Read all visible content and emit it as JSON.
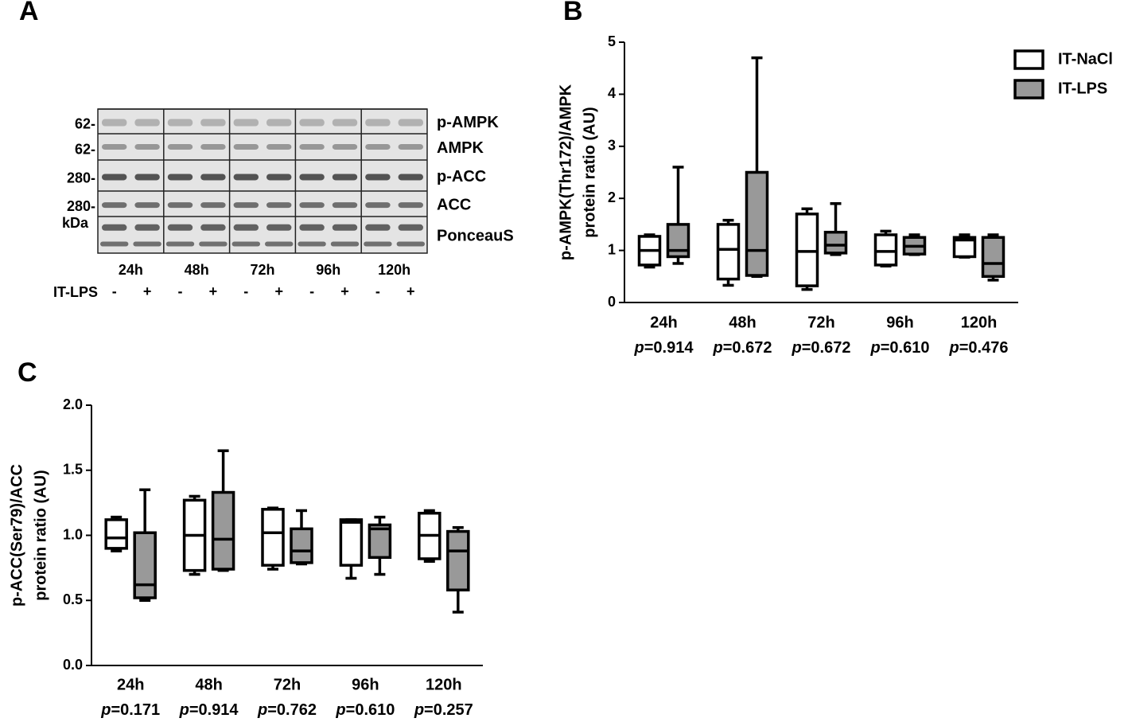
{
  "blot": {
    "panel": "A",
    "rows": [
      {
        "label": "p-AMPK",
        "marker": "62-"
      },
      {
        "label": "AMPK",
        "marker": "62-"
      },
      {
        "label": "p-ACC",
        "marker": "280-"
      },
      {
        "label": "ACC",
        "marker": "280-"
      },
      {
        "label": "PonceauS",
        "marker": "kDa"
      }
    ],
    "timepoints": [
      "24h",
      "48h",
      "72h",
      "96h",
      "120h"
    ],
    "treatment_label": "IT-LPS",
    "treatment_signs": [
      "-",
      "+",
      "-",
      "+",
      "-",
      "+",
      "-",
      "+",
      "-",
      "+"
    ]
  },
  "chart_data": [
    {
      "type": "box",
      "panel": "B",
      "ylabel": [
        "p-AMPK(Thr172)/AMPK",
        "protein ratio (AU)"
      ],
      "categories": [
        "24h",
        "48h",
        "72h",
        "96h",
        "120h"
      ],
      "p_values": [
        "p=0.914",
        "p=0.672",
        "p=0.672",
        "p=0.610",
        "p=0.476"
      ],
      "ylim": [
        0,
        5
      ],
      "yticks": [
        0,
        1,
        2,
        3,
        4,
        5
      ],
      "legend": "upper right",
      "series": [
        {
          "name": "IT-NaCl",
          "color": "#ffffff",
          "values": [
            {
              "min": 0.68,
              "q1": 0.72,
              "median": 1.0,
              "q3": 1.27,
              "max": 1.3
            },
            {
              "min": 0.33,
              "q1": 0.45,
              "median": 1.02,
              "q3": 1.5,
              "max": 1.58
            },
            {
              "min": 0.25,
              "q1": 0.32,
              "median": 0.98,
              "q3": 1.7,
              "max": 1.8
            },
            {
              "min": 0.7,
              "q1": 0.72,
              "median": 0.98,
              "q3": 1.3,
              "max": 1.37
            },
            {
              "min": 0.87,
              "q1": 0.88,
              "median": 1.2,
              "q3": 1.25,
              "max": 1.3
            }
          ]
        },
        {
          "name": "IT-LPS",
          "color": "#999999",
          "values": [
            {
              "min": 0.75,
              "q1": 0.88,
              "median": 1.0,
              "q3": 1.5,
              "max": 2.6
            },
            {
              "min": 0.5,
              "q1": 0.52,
              "median": 1.0,
              "q3": 2.5,
              "max": 4.7
            },
            {
              "min": 0.92,
              "q1": 0.95,
              "median": 1.1,
              "q3": 1.35,
              "max": 1.9
            },
            {
              "min": 0.92,
              "q1": 0.93,
              "median": 1.08,
              "q3": 1.25,
              "max": 1.3
            },
            {
              "min": 0.43,
              "q1": 0.5,
              "median": 0.75,
              "q3": 1.25,
              "max": 1.3
            }
          ]
        }
      ]
    },
    {
      "type": "box",
      "panel": "C",
      "ylabel": [
        "p-ACC(Ser79)/ACC",
        "protein ratio (AU)"
      ],
      "categories": [
        "24h",
        "48h",
        "72h",
        "96h",
        "120h"
      ],
      "p_values": [
        "p=0.171",
        "p=0.914",
        "p=0.762",
        "p=0.610",
        "p=0.257"
      ],
      "ylim": [
        0,
        2
      ],
      "yticks": [
        {
          "value": 0,
          "label": "0.0"
        },
        {
          "value": 0.5,
          "label": "0.5"
        },
        {
          "value": 1,
          "label": "1.0"
        },
        {
          "value": 1.5,
          "label": "1.5"
        },
        {
          "value": 2,
          "label": "2.0"
        }
      ],
      "series": [
        {
          "name": "IT-NaCl",
          "color": "#ffffff",
          "values": [
            {
              "min": 0.88,
              "q1": 0.9,
              "median": 0.98,
              "q3": 1.12,
              "max": 1.14
            },
            {
              "min": 0.7,
              "q1": 0.73,
              "median": 1.0,
              "q3": 1.27,
              "max": 1.3
            },
            {
              "min": 0.74,
              "q1": 0.77,
              "median": 1.02,
              "q3": 1.2,
              "max": 1.21
            },
            {
              "min": 0.67,
              "q1": 0.77,
              "median": 1.1,
              "q3": 1.12,
              "max": 1.12
            },
            {
              "min": 0.8,
              "q1": 0.82,
              "median": 1.0,
              "q3": 1.17,
              "max": 1.19
            }
          ]
        },
        {
          "name": "IT-LPS",
          "color": "#999999",
          "values": [
            {
              "min": 0.5,
              "q1": 0.52,
              "median": 0.62,
              "q3": 1.02,
              "max": 1.35
            },
            {
              "min": 0.73,
              "q1": 0.74,
              "median": 0.97,
              "q3": 1.33,
              "max": 1.65
            },
            {
              "min": 0.78,
              "q1": 0.79,
              "median": 0.88,
              "q3": 1.05,
              "max": 1.19
            },
            {
              "min": 0.7,
              "q1": 0.83,
              "median": 1.05,
              "q3": 1.08,
              "max": 1.14
            },
            {
              "min": 0.41,
              "q1": 0.58,
              "median": 0.88,
              "q3": 1.03,
              "max": 1.06
            }
          ]
        }
      ]
    }
  ]
}
